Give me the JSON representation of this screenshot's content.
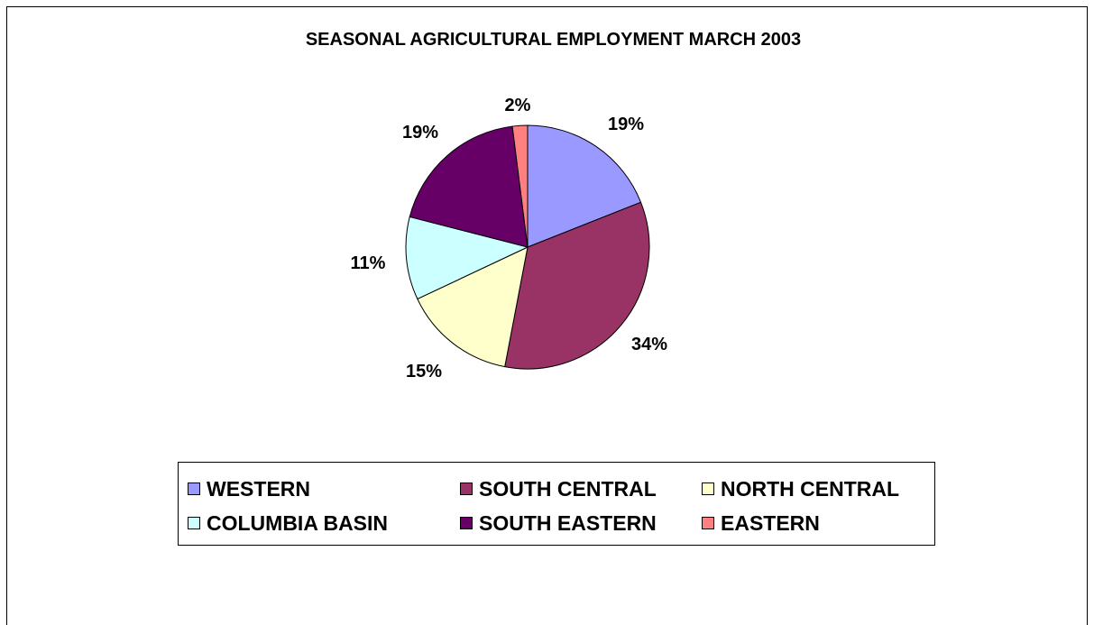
{
  "chart_data": {
    "type": "pie",
    "title": "SEASONAL AGRICULTURAL EMPLOYMENT MARCH 2003",
    "categories": [
      "WESTERN",
      "SOUTH CENTRAL",
      "NORTH CENTRAL",
      "COLUMBIA BASIN",
      "SOUTH EASTERN",
      "EASTERN"
    ],
    "values": [
      19,
      34,
      15,
      11,
      19,
      2
    ],
    "labels": [
      "19%",
      "34%",
      "15%",
      "11%",
      "19%",
      "2%"
    ],
    "colors": [
      "#9999FF",
      "#993366",
      "#FFFFCC",
      "#CCFFFF",
      "#660066",
      "#FF8080"
    ],
    "legend_position": "bottom"
  }
}
